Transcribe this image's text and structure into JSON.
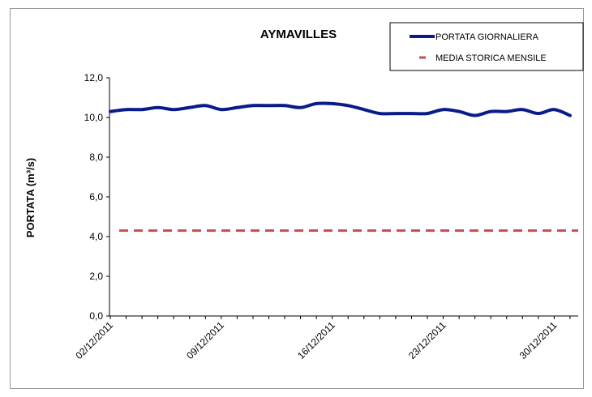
{
  "chart_data": {
    "type": "line",
    "title": "AYMAVILLES",
    "xlabel": "",
    "ylabel": "PORTATA (m³/s)",
    "ylim": [
      0,
      12
    ],
    "y_ticks": [
      "0,0",
      "2,0",
      "4,0",
      "6,0",
      "8,0",
      "10,0",
      "12,0"
    ],
    "x_ticks": [
      "02/12/2011",
      "09/12/2011",
      "16/12/2011",
      "23/12/2011",
      "30/12/2011"
    ],
    "x": [
      "02/12/2011",
      "03/12/2011",
      "04/12/2011",
      "05/12/2011",
      "06/12/2011",
      "07/12/2011",
      "08/12/2011",
      "09/12/2011",
      "10/12/2011",
      "11/12/2011",
      "12/12/2011",
      "13/12/2011",
      "14/12/2011",
      "15/12/2011",
      "16/12/2011",
      "17/12/2011",
      "18/12/2011",
      "19/12/2011",
      "20/12/2011",
      "21/12/2011",
      "22/12/2011",
      "23/12/2011",
      "24/12/2011",
      "25/12/2011",
      "26/12/2011",
      "27/12/2011",
      "28/12/2011",
      "29/12/2011",
      "30/12/2011",
      "31/12/2011"
    ],
    "grid": false,
    "legend_position": "top-right",
    "series": [
      {
        "name": "PORTATA GIORNALIERA",
        "style": "solid",
        "color": "#0a1a8a",
        "values": [
          10.3,
          10.4,
          10.4,
          10.5,
          10.4,
          10.5,
          10.6,
          10.4,
          10.5,
          10.6,
          10.6,
          10.6,
          10.5,
          10.7,
          10.7,
          10.6,
          10.4,
          10.2,
          10.2,
          10.2,
          10.2,
          10.4,
          10.3,
          10.1,
          10.3,
          10.3,
          10.4,
          10.2,
          10.4,
          10.1
        ]
      },
      {
        "name": "MEDIA STORICA MENSILE",
        "style": "dashed",
        "color": "#c0504d",
        "values": [
          4.3,
          4.3,
          4.3,
          4.3,
          4.3,
          4.3,
          4.3,
          4.3,
          4.3,
          4.3,
          4.3,
          4.3,
          4.3,
          4.3,
          4.3,
          4.3,
          4.3,
          4.3,
          4.3,
          4.3,
          4.3,
          4.3,
          4.3,
          4.3,
          4.3,
          4.3,
          4.3,
          4.3,
          4.3,
          4.3
        ]
      }
    ]
  }
}
